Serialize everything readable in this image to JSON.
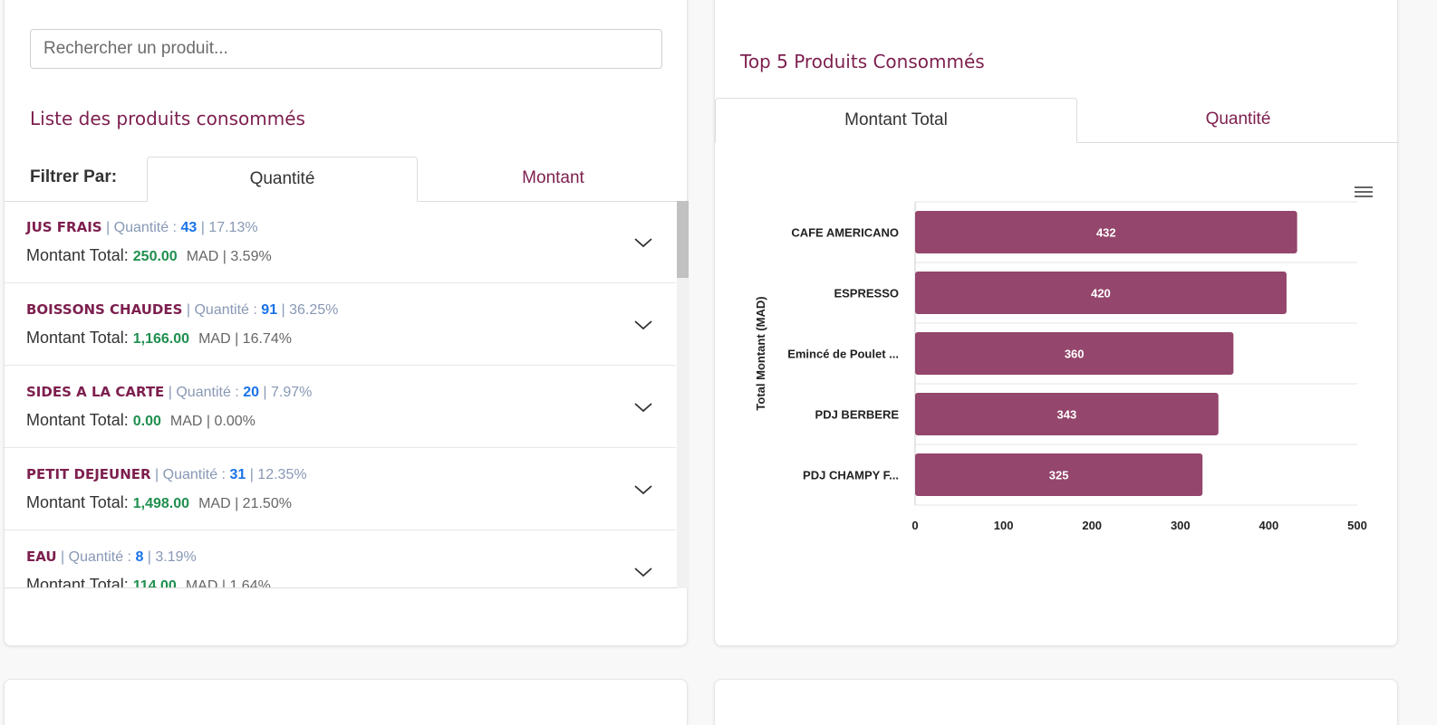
{
  "search": {
    "placeholder": "Rechercher un produit..."
  },
  "list_section": {
    "title": "Liste des produits consommés",
    "filter_label": "Filtrer Par:",
    "tabs": [
      {
        "label": "Quantité",
        "active": true
      },
      {
        "label": "Montant",
        "active": false
      }
    ],
    "qty_label": "Quantité :",
    "mnt_label": "Montant Total:",
    "currency": "MAD",
    "items": [
      {
        "name": "JUS FRAIS",
        "qty": "43",
        "qty_pct": "17.13%",
        "amount": "250.00",
        "amount_pct": "3.59%"
      },
      {
        "name": "BOISSONS CHAUDES",
        "qty": "91",
        "qty_pct": "36.25%",
        "amount": "1,166.00",
        "amount_pct": "16.74%"
      },
      {
        "name": "SIDES A LA CARTE",
        "qty": "20",
        "qty_pct": "7.97%",
        "amount": "0.00",
        "amount_pct": "0.00%"
      },
      {
        "name": "PETIT DEJEUNER",
        "qty": "31",
        "qty_pct": "12.35%",
        "amount": "1,498.00",
        "amount_pct": "21.50%"
      },
      {
        "name": "EAU",
        "qty": "8",
        "qty_pct": "3.19%",
        "amount": "114.00",
        "amount_pct": "1.64%"
      }
    ]
  },
  "chart_section": {
    "title": "Top 5 Produits Consommés",
    "tabs": [
      {
        "label": "Montant Total",
        "active": true
      },
      {
        "label": "Quantité",
        "active": false
      }
    ]
  },
  "colors": {
    "accent": "#7d1f4e",
    "bar": "#94466c",
    "qty": "#1a73e8",
    "amount": "#1f8f4e"
  },
  "icons": {
    "chevron": "chevron-down-icon",
    "menu": "hamburger-menu-icon"
  },
  "chart_data": {
    "type": "bar",
    "orientation": "horizontal",
    "categories": [
      "CAFE AMERICANO",
      "ESPRESSO",
      "Emincé de Poulet ...",
      "PDJ BERBERE",
      "PDJ CHAMPY F..."
    ],
    "values": [
      432,
      420,
      360,
      343,
      325
    ],
    "ylabel": "Total Montant (MAD)",
    "xlim": [
      0,
      500
    ],
    "xticks": [
      "0",
      "100",
      "200",
      "300",
      "400",
      "500"
    ],
    "grid": true,
    "data_labels": true
  }
}
